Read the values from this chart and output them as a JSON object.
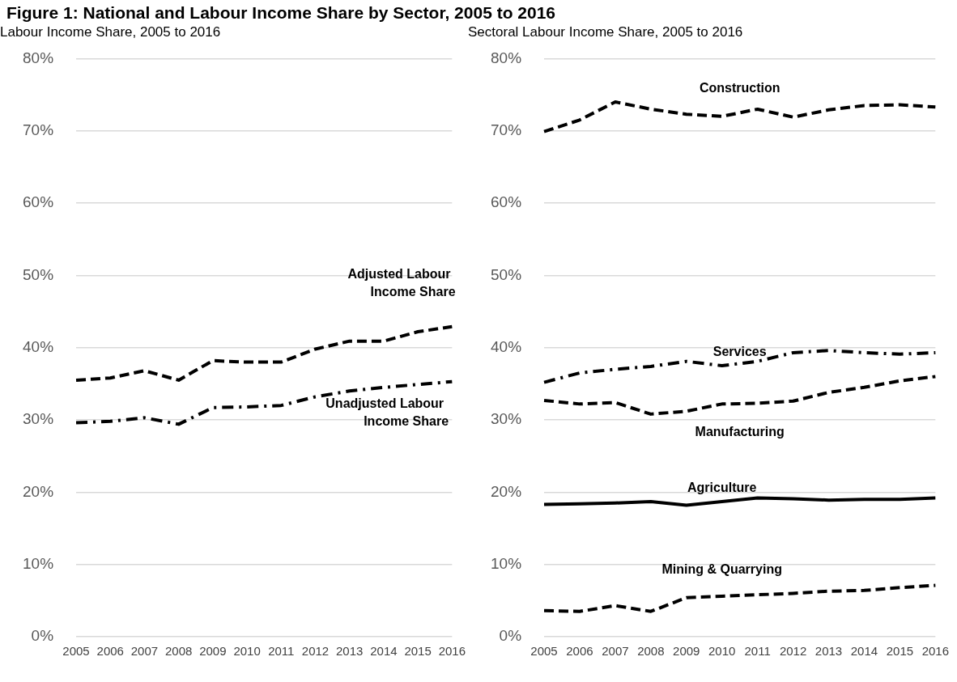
{
  "chart_data": [
    {
      "type": "line",
      "title": "Figure 1: National and Labour Income Share by Sector, 2005 to 2016",
      "subtitle": "Labour Income Share, 2005 to 2016",
      "categories": [
        "2005",
        "2006",
        "2007",
        "2008",
        "2009",
        "2010",
        "2011",
        "2012",
        "2013",
        "2014",
        "2015",
        "2016"
      ],
      "ylim": [
        0,
        80
      ],
      "yticks": [
        {
          "value": 0,
          "label": "0%"
        },
        {
          "value": 10,
          "label": "10%"
        },
        {
          "value": 20,
          "label": "20%"
        },
        {
          "value": 30,
          "label": "30%"
        },
        {
          "value": 40,
          "label": "40%"
        },
        {
          "value": 50,
          "label": "50%"
        },
        {
          "value": 60,
          "label": "60%"
        },
        {
          "value": 70,
          "label": "70%"
        },
        {
          "value": 80,
          "label": "80%"
        }
      ],
      "grid": "y",
      "legend": false,
      "marker": "none",
      "series": [
        {
          "name": "Adjusted Labour Income Share",
          "color": "#000000",
          "line_style": "dashed",
          "values": [
            35.5,
            35.8,
            36.8,
            35.5,
            38.2,
            38.0,
            38.0,
            39.8,
            40.9,
            40.9,
            42.2,
            42.9
          ]
        },
        {
          "name": "Unadjusted Labour Income Share",
          "color": "#000000",
          "line_style": "dashdot",
          "values": [
            29.6,
            29.8,
            30.3,
            29.4,
            31.7,
            31.8,
            32.0,
            33.2,
            34.0,
            34.5,
            34.9,
            35.3
          ]
        }
      ]
    },
    {
      "type": "line",
      "subtitle": "Sectoral Labour Income Share, 2005 to 2016",
      "categories": [
        "2005",
        "2006",
        "2007",
        "2008",
        "2009",
        "2010",
        "2011",
        "2012",
        "2013",
        "2014",
        "2015",
        "2016"
      ],
      "ylim": [
        0,
        80
      ],
      "yticks": [
        {
          "value": 0,
          "label": "0%"
        },
        {
          "value": 10,
          "label": "10%"
        },
        {
          "value": 20,
          "label": "20%"
        },
        {
          "value": 30,
          "label": "30%"
        },
        {
          "value": 40,
          "label": "40%"
        },
        {
          "value": 50,
          "label": "50%"
        },
        {
          "value": 60,
          "label": "60%"
        },
        {
          "value": 70,
          "label": "70%"
        },
        {
          "value": 80,
          "label": "80%"
        }
      ],
      "grid": "y",
      "legend": false,
      "marker": "none",
      "series": [
        {
          "name": "Construction",
          "color": "#000000",
          "line_style": "dashed",
          "values": [
            69.9,
            71.5,
            74.0,
            73.0,
            72.3,
            72.0,
            73.0,
            71.9,
            72.9,
            73.5,
            73.6,
            73.3
          ]
        },
        {
          "name": "Services",
          "color": "#000000",
          "line_style": "dashdot",
          "values": [
            35.2,
            36.5,
            37.0,
            37.4,
            38.1,
            37.5,
            38.1,
            39.3,
            39.6,
            39.3,
            39.1,
            39.3
          ]
        },
        {
          "name": "Manufacturing",
          "color": "#000000",
          "line_style": "dashed",
          "values": [
            32.7,
            32.2,
            32.4,
            30.8,
            31.2,
            32.2,
            32.3,
            32.6,
            33.8,
            34.5,
            35.4,
            36.0
          ]
        },
        {
          "name": "Agriculture",
          "color": "#000000",
          "line_style": "solid",
          "values": [
            18.3,
            18.4,
            18.5,
            18.7,
            18.2,
            18.7,
            19.2,
            19.1,
            18.9,
            19.0,
            19.0,
            19.2
          ]
        },
        {
          "name": "Mining & Quarrying",
          "color": "#000000",
          "line_style": "dashed",
          "values": [
            3.6,
            3.5,
            4.3,
            3.5,
            5.4,
            5.6,
            5.8,
            6.0,
            6.3,
            6.4,
            6.8,
            7.1
          ]
        }
      ]
    }
  ]
}
